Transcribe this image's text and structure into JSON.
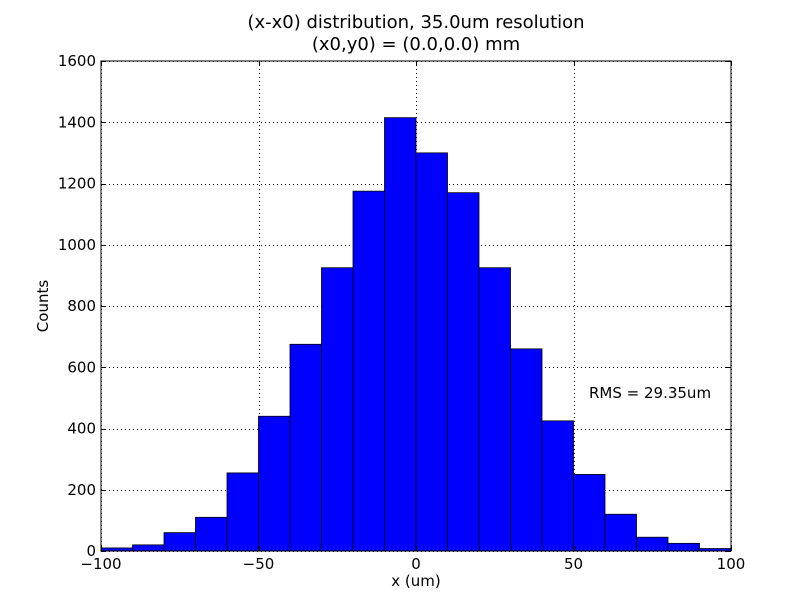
{
  "chart_data": {
    "type": "bar",
    "title": "(x-x0) distribution, 35.0um resolution",
    "subtitle": "(x0,y0) = (0.0,0.0) mm",
    "xlabel": "x (um)",
    "ylabel": "Counts",
    "xlim": [
      -100,
      100
    ],
    "ylim": [
      0,
      1600
    ],
    "xticks": [
      -100,
      -50,
      0,
      50,
      100
    ],
    "xtick_labels": [
      "−100",
      "−50",
      "0",
      "50",
      "100"
    ],
    "yticks": [
      0,
      200,
      400,
      600,
      800,
      1000,
      1200,
      1400,
      1600
    ],
    "ytick_labels": [
      "0",
      "200",
      "400",
      "600",
      "800",
      "1000",
      "1200",
      "1400",
      "1600"
    ],
    "grid": true,
    "bar_color": "#0000ff",
    "bin_edges": [
      -100,
      -90,
      -80,
      -70,
      -60,
      -50,
      -40,
      -30,
      -20,
      -10,
      0,
      10,
      20,
      30,
      40,
      50,
      60,
      70,
      80,
      90,
      100
    ],
    "values": [
      10,
      20,
      60,
      110,
      255,
      440,
      675,
      925,
      1175,
      1415,
      1300,
      1170,
      925,
      660,
      425,
      250,
      120,
      45,
      25,
      8
    ],
    "annotation": "RMS = 29.35um"
  }
}
